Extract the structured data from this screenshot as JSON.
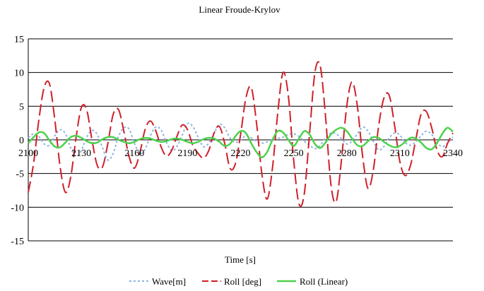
{
  "chart_data": {
    "type": "line",
    "title": "Linear Froude-Krylov",
    "xlabel": "Time [s]",
    "ylabel": "",
    "xlim": [
      2100,
      2340
    ],
    "ylim": [
      -15,
      15
    ],
    "x_ticks": [
      2100,
      2130,
      2160,
      2190,
      2220,
      2250,
      2280,
      2310,
      2340
    ],
    "y_ticks": [
      15,
      10,
      5,
      0,
      -5,
      -10,
      -15
    ],
    "x_tick_labels": [
      "2100",
      "2130",
      "2160",
      "2190",
      "2220",
      "2250",
      "2280",
      "2310",
      "2340"
    ],
    "y_tick_labels": [
      "15",
      "10",
      "5",
      "0",
      "-5",
      "-10",
      "-15"
    ],
    "grid": "horizontal",
    "legend_position": "bottom",
    "series": [
      {
        "name": "Wave[m]",
        "color": "#8fb4e3",
        "style": "dotted",
        "x": [
          2100,
          2103,
          2106,
          2109,
          2112,
          2115,
          2118,
          2121,
          2124,
          2127,
          2130,
          2133,
          2136,
          2139,
          2142,
          2145,
          2148,
          2151,
          2154,
          2157,
          2160,
          2163,
          2166,
          2169,
          2172,
          2175,
          2178,
          2181,
          2184,
          2187,
          2190,
          2193,
          2196,
          2199,
          2202,
          2205,
          2208,
          2211,
          2214,
          2217,
          2220,
          2223,
          2226,
          2229,
          2232,
          2235,
          2238,
          2241,
          2244,
          2247,
          2250,
          2253,
          2256,
          2259,
          2262,
          2265,
          2268,
          2271,
          2274,
          2277,
          2280,
          2283,
          2286,
          2289,
          2292,
          2295,
          2298,
          2301,
          2304,
          2307,
          2310,
          2313,
          2316,
          2319,
          2322,
          2325,
          2328,
          2331,
          2334,
          2337,
          2340
        ],
        "values": [
          0.3,
          0.9,
          0.5,
          -0.6,
          -0.8,
          0.6,
          1.5,
          0.9,
          -1.2,
          -2.4,
          -1.6,
          0.4,
          1.4,
          0.8,
          -1.2,
          -3.0,
          -2.0,
          0.5,
          1.8,
          1.6,
          -0.5,
          -2.0,
          -1.4,
          0.6,
          1.9,
          1.5,
          -0.3,
          -1.6,
          -1.0,
          0.7,
          2.4,
          2.0,
          0.4,
          -1.0,
          -0.5,
          1.0,
          2.3,
          1.8,
          0.3,
          -0.4,
          0.0,
          0.6,
          0.3,
          -0.2,
          -0.5,
          -0.3,
          0.0,
          0.2,
          0.4,
          0.8,
          0.9,
          0.5,
          -0.2,
          -0.8,
          -1.3,
          -0.8,
          0.3,
          1.0,
          0.9,
          0.2,
          -0.6,
          -0.2,
          0.9,
          1.9,
          1.3,
          -0.2,
          -1.5,
          -1.0,
          0.3,
          1.0,
          0.7,
          -0.4,
          -0.8,
          -0.3,
          0.6,
          1.3,
          0.8,
          -0.4,
          -1.0,
          -0.5,
          0.4
        ]
      },
      {
        "name": "Roll [deg]",
        "color": "#d0202a",
        "style": "dashed",
        "x": [
          2100,
          2103,
          2106,
          2109,
          2112,
          2115,
          2118,
          2121,
          2124,
          2127,
          2130,
          2133,
          2136,
          2139,
          2142,
          2145,
          2148,
          2151,
          2154,
          2157,
          2160,
          2163,
          2166,
          2169,
          2172,
          2175,
          2178,
          2181,
          2184,
          2187,
          2190,
          2193,
          2196,
          2199,
          2202,
          2205,
          2208,
          2211,
          2214,
          2217,
          2220,
          2223,
          2226,
          2229,
          2232,
          2235,
          2238,
          2241,
          2244,
          2247,
          2250,
          2253,
          2256,
          2259,
          2262,
          2265,
          2268,
          2271,
          2274,
          2277,
          2280,
          2283,
          2286,
          2289,
          2292,
          2295,
          2298,
          2301,
          2304,
          2307,
          2310,
          2313,
          2316,
          2319,
          2322,
          2325,
          2328,
          2331,
          2334,
          2337,
          2340
        ],
        "values": [
          -7.8,
          -3.5,
          3.0,
          7.8,
          8.3,
          3.0,
          -4.0,
          -7.8,
          -5.5,
          0.3,
          4.8,
          4.5,
          0.0,
          -3.8,
          -4.0,
          -0.5,
          3.8,
          4.5,
          1.3,
          -2.5,
          -4.2,
          -2.0,
          1.5,
          2.8,
          1.4,
          -1.0,
          -2.4,
          -1.6,
          0.5,
          2.2,
          1.5,
          -0.8,
          -2.0,
          -2.7,
          -1.6,
          1.0,
          2.0,
          -0.5,
          -4.2,
          -3.6,
          0.8,
          6.2,
          7.8,
          2.5,
          -5.0,
          -8.8,
          -4.2,
          4.0,
          10.0,
          6.5,
          -3.0,
          -9.5,
          -8.0,
          1.0,
          10.0,
          11.0,
          3.5,
          -6.5,
          -9.2,
          -3.0,
          5.0,
          8.6,
          5.0,
          -2.5,
          -7.2,
          -4.5,
          2.0,
          6.2,
          6.6,
          2.2,
          -3.2,
          -5.3,
          -3.8,
          0.0,
          3.8,
          4.2,
          1.8,
          -1.5,
          -2.5,
          -0.5,
          1.0
        ]
      },
      {
        "name": "Roll (Linear)",
        "color": "#4cd24c",
        "style": "solid",
        "x": [
          2100,
          2103,
          2106,
          2109,
          2112,
          2115,
          2118,
          2121,
          2124,
          2127,
          2130,
          2133,
          2136,
          2139,
          2142,
          2145,
          2148,
          2151,
          2154,
          2157,
          2160,
          2163,
          2166,
          2169,
          2172,
          2175,
          2178,
          2181,
          2184,
          2187,
          2190,
          2193,
          2196,
          2199,
          2202,
          2205,
          2208,
          2211,
          2214,
          2217,
          2220,
          2223,
          2226,
          2229,
          2232,
          2235,
          2238,
          2241,
          2244,
          2247,
          2250,
          2253,
          2256,
          2259,
          2262,
          2265,
          2268,
          2271,
          2274,
          2277,
          2280,
          2283,
          2286,
          2289,
          2292,
          2295,
          2298,
          2301,
          2304,
          2307,
          2310,
          2313,
          2316,
          2319,
          2322,
          2325,
          2328,
          2331,
          2334,
          2337,
          2340
        ],
        "values": [
          -0.5,
          0.4,
          1.1,
          1.0,
          -0.1,
          -1.0,
          -1.1,
          -0.4,
          0.4,
          0.6,
          0.3,
          -0.2,
          -0.5,
          -0.4,
          0.1,
          0.4,
          0.4,
          0.0,
          -0.3,
          -0.5,
          -0.3,
          0.1,
          0.3,
          0.2,
          -0.1,
          -0.3,
          -0.2,
          0.1,
          0.2,
          0.0,
          -0.3,
          -0.5,
          -0.3,
          0.1,
          0.3,
          0.2,
          -0.3,
          -0.9,
          -0.6,
          0.5,
          1.3,
          1.0,
          -0.5,
          -1.8,
          -2.6,
          -1.8,
          0.0,
          1.3,
          1.1,
          0.0,
          -0.9,
          0.2,
          1.3,
          0.8,
          -0.6,
          -1.2,
          -0.4,
          0.8,
          1.5,
          1.8,
          1.3,
          0.2,
          -0.8,
          -0.9,
          -0.2,
          0.4,
          0.3,
          -0.3,
          -0.8,
          -1.1,
          -0.9,
          -0.3,
          0.3,
          0.2,
          -0.4,
          -1.2,
          -1.4,
          -0.5,
          0.9,
          1.8,
          1.2
        ]
      }
    ]
  }
}
